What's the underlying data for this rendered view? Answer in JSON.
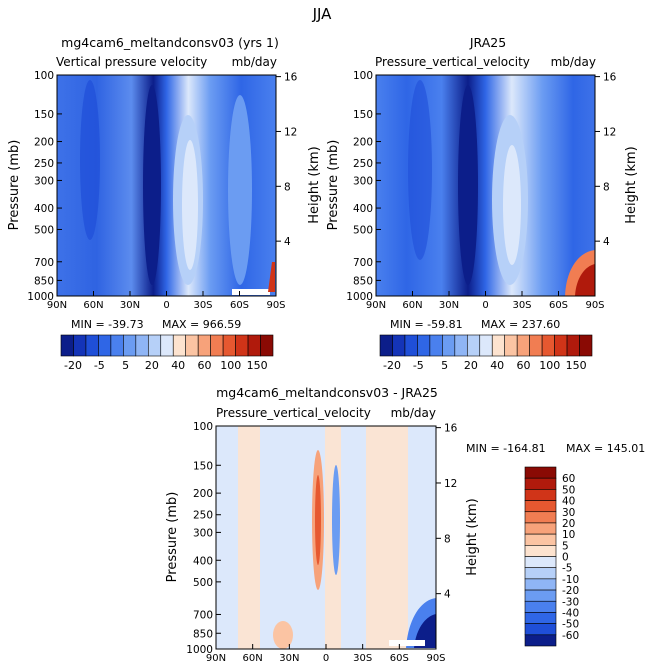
{
  "figure": {
    "season": "JJA"
  },
  "chart_data": [
    {
      "id": "model",
      "type": "heatmap",
      "title": "mg4cam6_meltandconsv03 (yrs 1)",
      "subtitle_left": "Vertical pressure velocity",
      "subtitle_right": "mb/day",
      "ylabel": "Pressure (mb)",
      "y2label": "Height (km)",
      "x_ticks": [
        "90N",
        "60N",
        "30N",
        "0",
        "30S",
        "60S",
        "90S"
      ],
      "y_ticks": [
        100,
        150,
        200,
        250,
        300,
        400,
        500,
        700,
        850,
        1000
      ],
      "y2_ticks": [
        16,
        12,
        8,
        4
      ],
      "ylim": [
        1000,
        100
      ],
      "xlim": [
        90,
        -90
      ],
      "stats": {
        "min_label": "MIN = -39.73",
        "max_label": "MAX = 966.59"
      },
      "colorbar_labels": [
        "-20",
        "-5",
        "5",
        "20",
        "40",
        "60",
        "100",
        "150"
      ],
      "colorbar_colors": [
        "#0c1e8a",
        "#1434b8",
        "#1f4fd8",
        "#2f66e6",
        "#4a80ee",
        "#6b9cf2",
        "#8fb5f5",
        "#b6d0f8",
        "#dce8fb",
        "#fde3cf",
        "#fbc4a3",
        "#f7a27a",
        "#f17d52",
        "#e65830",
        "#d03418",
        "#b01a0c",
        "#8a0a04"
      ]
    },
    {
      "id": "obs",
      "type": "heatmap",
      "title": "JRA25",
      "subtitle_left": "Pressure_vertical_velocity",
      "subtitle_right": "mb/day",
      "ylabel": "Pressure (mb)",
      "y2label": "Height (km)",
      "x_ticks": [
        "90N",
        "60N",
        "30N",
        "0",
        "30S",
        "60S",
        "90S"
      ],
      "y_ticks": [
        100,
        150,
        200,
        250,
        300,
        400,
        500,
        700,
        850,
        1000
      ],
      "y2_ticks": [
        16,
        12,
        8,
        4
      ],
      "ylim": [
        1000,
        100
      ],
      "xlim": [
        90,
        -90
      ],
      "stats": {
        "min_label": "MIN = -59.81",
        "max_label": "MAX = 237.60"
      },
      "colorbar_labels": [
        "-20",
        "-5",
        "5",
        "20",
        "40",
        "60",
        "100",
        "150"
      ],
      "colorbar_colors": [
        "#0c1e8a",
        "#1434b8",
        "#1f4fd8",
        "#2f66e6",
        "#4a80ee",
        "#6b9cf2",
        "#8fb5f5",
        "#b6d0f8",
        "#dce8fb",
        "#fde3cf",
        "#fbc4a3",
        "#f7a27a",
        "#f17d52",
        "#e65830",
        "#d03418",
        "#b01a0c",
        "#8a0a04"
      ]
    },
    {
      "id": "diff",
      "type": "heatmap",
      "title": "mg4cam6_meltandconsv03 - JRA25",
      "subtitle_left": "Pressure_vertical_velocity",
      "subtitle_right": "mb/day",
      "ylabel": "Pressure (mb)",
      "y2label": "Height (km)",
      "x_ticks": [
        "90N",
        "60N",
        "30N",
        "0",
        "30S",
        "60S",
        "90S"
      ],
      "y_ticks": [
        100,
        150,
        200,
        250,
        300,
        400,
        500,
        700,
        850,
        1000
      ],
      "y2_ticks": [
        16,
        12,
        8,
        4
      ],
      "ylim": [
        1000,
        100
      ],
      "xlim": [
        90,
        -90
      ],
      "stats": {
        "min_label": "MIN = -164.81",
        "max_label": "MAX = 145.01"
      },
      "colorbar_labels": [
        "60",
        "50",
        "40",
        "30",
        "20",
        "10",
        "5",
        "0",
        "-5",
        "-10",
        "-20",
        "-30",
        "-40",
        "-50",
        "-60"
      ],
      "colorbar_colors": [
        "#8a0a04",
        "#b01a0c",
        "#d03418",
        "#e65830",
        "#f17d52",
        "#f7a27a",
        "#fbc4a3",
        "#fde3cf",
        "#dce8fb",
        "#b6d0f8",
        "#8fb5f5",
        "#6b9cf2",
        "#4a80ee",
        "#2f66e6",
        "#1f4fd8",
        "#0c1e8a"
      ]
    }
  ]
}
